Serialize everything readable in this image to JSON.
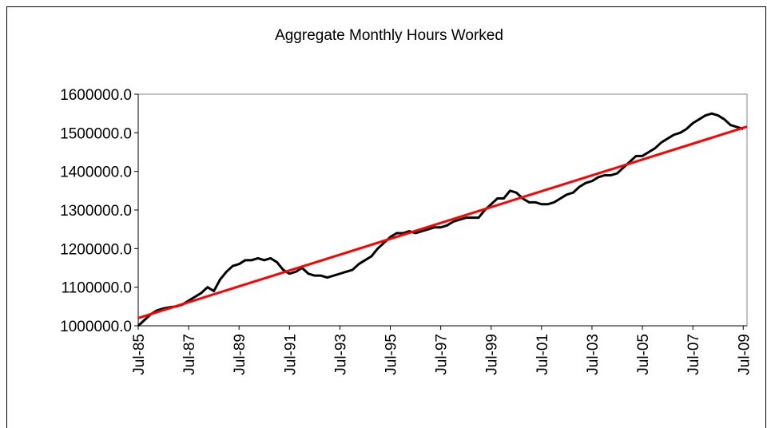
{
  "chart_data": {
    "type": "line",
    "title": "Aggregate Monthly Hours Worked",
    "x": [
      1985.5,
      1985.75,
      1986,
      1986.25,
      1986.5,
      1986.75,
      1987,
      1987.25,
      1987.5,
      1987.75,
      1988,
      1988.25,
      1988.5,
      1988.75,
      1989,
      1989.25,
      1989.5,
      1989.75,
      1990,
      1990.25,
      1990.5,
      1990.75,
      1991,
      1991.25,
      1991.5,
      1991.75,
      1992,
      1992.25,
      1992.5,
      1992.75,
      1993,
      1993.25,
      1993.5,
      1993.75,
      1994,
      1994.25,
      1994.5,
      1994.75,
      1995,
      1995.25,
      1995.5,
      1995.75,
      1996,
      1996.25,
      1996.5,
      1996.75,
      1997,
      1997.25,
      1997.5,
      1997.75,
      1998,
      1998.25,
      1998.5,
      1998.75,
      1999,
      1999.25,
      1999.5,
      1999.75,
      2000,
      2000.25,
      2000.5,
      2000.75,
      2001,
      2001.25,
      2001.5,
      2001.75,
      2002,
      2002.25,
      2002.5,
      2002.75,
      2003,
      2003.25,
      2003.5,
      2003.75,
      2004,
      2004.25,
      2004.5,
      2004.75,
      2005,
      2005.25,
      2005.5,
      2005.75,
      2006,
      2006.25,
      2006.5,
      2006.75,
      2007,
      2007.25,
      2007.5,
      2007.75,
      2008,
      2008.25,
      2008.5,
      2008.75,
      2009,
      2009.25,
      2009.5
    ],
    "series": [
      {
        "color": "#000000",
        "values": [
          1000000,
          1015000,
          1030000,
          1040000,
          1045000,
          1048000,
          1050000,
          1055000,
          1065000,
          1075000,
          1085000,
          1100000,
          1090000,
          1120000,
          1140000,
          1155000,
          1160000,
          1170000,
          1170000,
          1175000,
          1170000,
          1175000,
          1165000,
          1145000,
          1135000,
          1140000,
          1150000,
          1135000,
          1130000,
          1130000,
          1125000,
          1130000,
          1135000,
          1140000,
          1145000,
          1160000,
          1170000,
          1180000,
          1200000,
          1215000,
          1230000,
          1240000,
          1240000,
          1245000,
          1240000,
          1245000,
          1250000,
          1255000,
          1255000,
          1260000,
          1270000,
          1275000,
          1280000,
          1280000,
          1280000,
          1300000,
          1315000,
          1330000,
          1330000,
          1350000,
          1345000,
          1330000,
          1320000,
          1320000,
          1315000,
          1315000,
          1320000,
          1330000,
          1340000,
          1345000,
          1360000,
          1370000,
          1375000,
          1385000,
          1390000,
          1390000,
          1395000,
          1410000,
          1425000,
          1440000,
          1440000,
          1450000,
          1460000,
          1475000,
          1485000,
          1495000,
          1500000,
          1510000,
          1525000,
          1535000,
          1545000,
          1550000,
          1545000,
          1535000,
          1520000,
          1515000,
          1510000
        ]
      },
      {
        "color": "#ff0000",
        "x": [
          1985.5,
          2009.65
        ],
        "values": [
          1020000,
          1516000
        ]
      }
    ],
    "xlim": [
      1985.5,
      2009.65
    ],
    "xticks": [
      {
        "value": 1985.5,
        "label": "Jul-85"
      },
      {
        "value": 1987.5,
        "label": "Jul-87"
      },
      {
        "value": 1989.5,
        "label": "Jul-89"
      },
      {
        "value": 1991.5,
        "label": "Jul-91"
      },
      {
        "value": 1993.5,
        "label": "Jul-93"
      },
      {
        "value": 1995.5,
        "label": "Jul-95"
      },
      {
        "value": 1997.5,
        "label": "Jul-97"
      },
      {
        "value": 1999.5,
        "label": "Jul-99"
      },
      {
        "value": 2001.5,
        "label": "Jul-01"
      },
      {
        "value": 2003.5,
        "label": "Jul-03"
      },
      {
        "value": 2005.5,
        "label": "Jul-05"
      },
      {
        "value": 2007.5,
        "label": "Jul-07"
      },
      {
        "value": 2009.5,
        "label": "Jul-09"
      }
    ],
    "ylim": [
      1000000,
      1600000
    ],
    "yticks": [
      {
        "value": 1000000,
        "label": "1000000.0"
      },
      {
        "value": 1100000,
        "label": "1100000.0"
      },
      {
        "value": 1200000,
        "label": "1200000.0"
      },
      {
        "value": 1300000,
        "label": "1300000.0"
      },
      {
        "value": 1400000,
        "label": "1400000.0"
      },
      {
        "value": 1500000,
        "label": "1500000.0"
      },
      {
        "value": 1600000,
        "label": "1600000.0"
      }
    ],
    "grid": false
  }
}
